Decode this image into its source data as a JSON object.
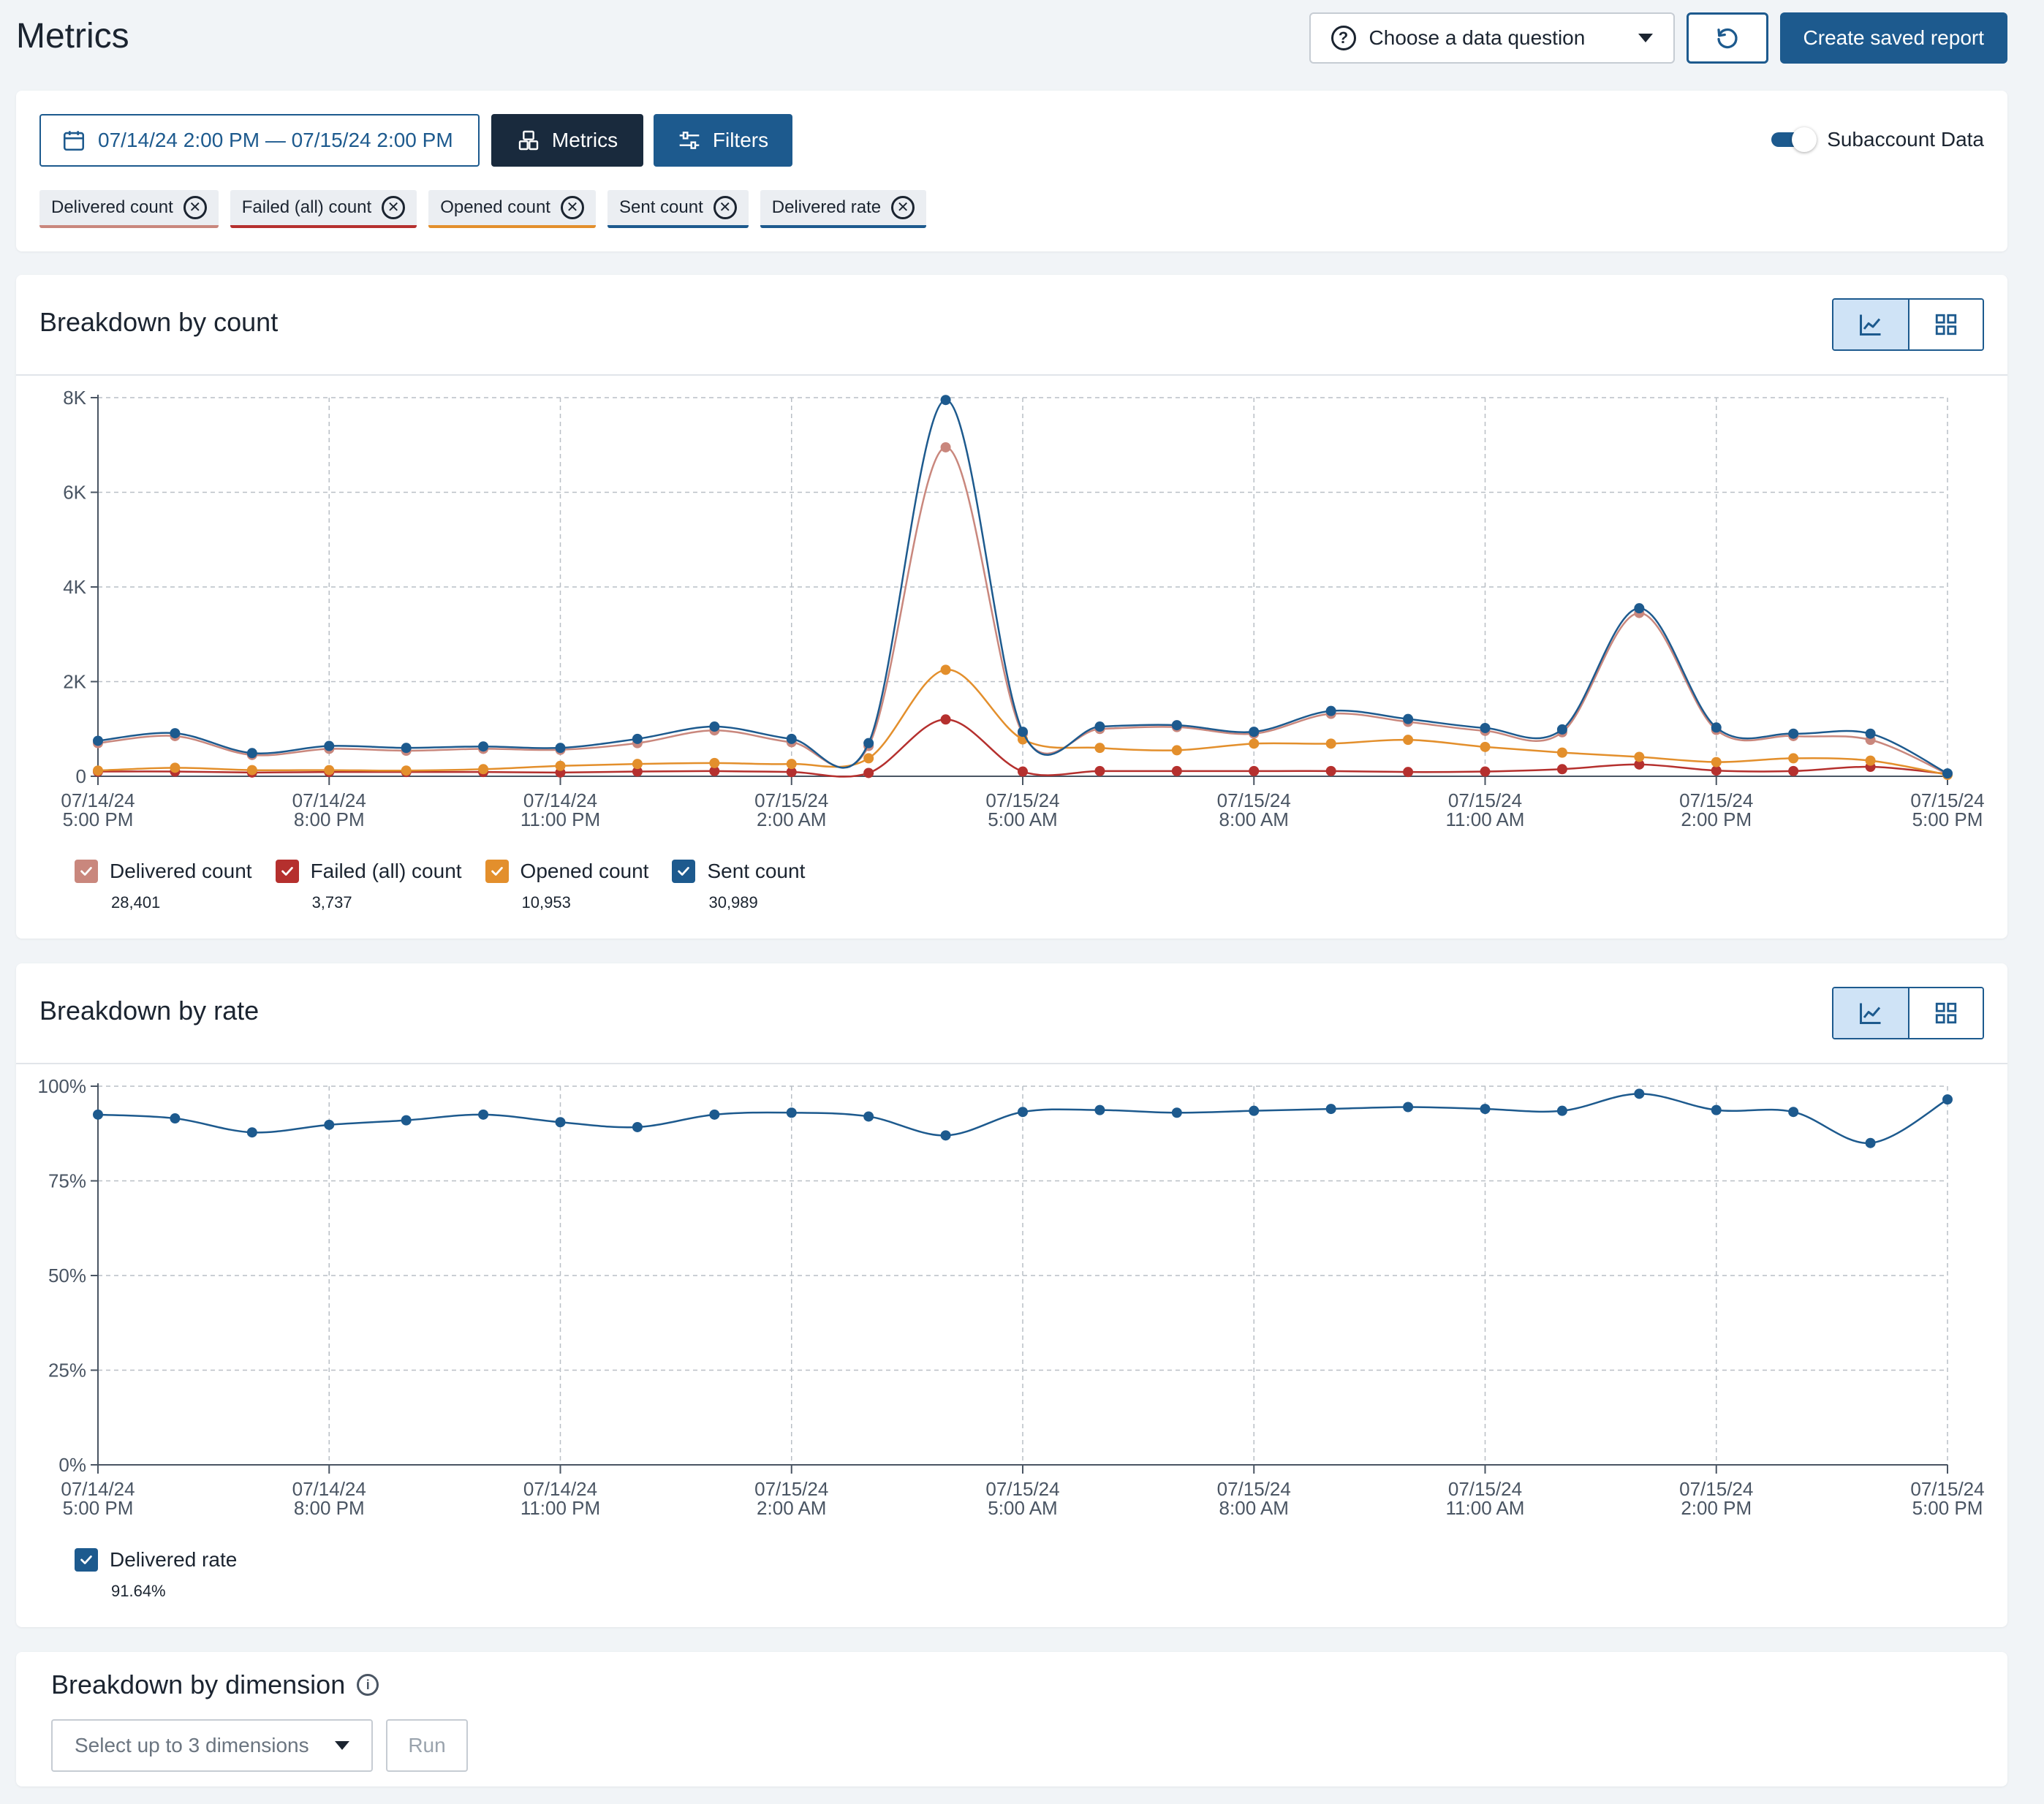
{
  "header": {
    "title": "Metrics",
    "question_select": "Choose a data question",
    "create_report": "Create saved report"
  },
  "filters": {
    "date_range": "07/14/24 2:00 PM — 07/15/24 2:00 PM",
    "metrics_label": "Metrics",
    "filters_label": "Filters",
    "subaccount_label": "Subaccount Data",
    "subaccount_on": true,
    "chips": [
      {
        "label": "Delivered count",
        "color": "#c9877d"
      },
      {
        "label": "Failed (all) count",
        "color": "#b5302e"
      },
      {
        "label": "Opened count",
        "color": "#e38f2c"
      },
      {
        "label": "Sent count",
        "color": "#1d5a8e"
      },
      {
        "label": "Delivered rate",
        "color": "#1d5a8e"
      }
    ]
  },
  "count_card": {
    "title": "Breakdown by count",
    "legend": [
      {
        "name": "Delivered count",
        "total": "28,401",
        "color": "#c9877d"
      },
      {
        "name": "Failed (all) count",
        "total": "3,737",
        "color": "#b5302e"
      },
      {
        "name": "Opened count",
        "total": "10,953",
        "color": "#e38f2c"
      },
      {
        "name": "Sent count",
        "total": "30,989",
        "color": "#1d5a8e"
      }
    ]
  },
  "rate_card": {
    "title": "Breakdown by rate",
    "legend": [
      {
        "name": "Delivered rate",
        "total": "91.64%",
        "color": "#1d5a8e"
      }
    ]
  },
  "dimension_card": {
    "title": "Breakdown by dimension",
    "select_placeholder": "Select up to 3 dimensions",
    "run_label": "Run"
  },
  "chart_data": [
    {
      "type": "line",
      "title": "Breakdown by count",
      "x_ticks": [
        [
          "07/14/24",
          "5:00 PM"
        ],
        [
          "07/14/24",
          "8:00 PM"
        ],
        [
          "07/14/24",
          "11:00 PM"
        ],
        [
          "07/15/24",
          "2:00 AM"
        ],
        [
          "07/15/24",
          "5:00 AM"
        ],
        [
          "07/15/24",
          "8:00 AM"
        ],
        [
          "07/15/24",
          "11:00 AM"
        ],
        [
          "07/15/24",
          "2:00 PM"
        ],
        [
          "07/15/24",
          "5:00 PM"
        ]
      ],
      "y_ticks": [
        "0",
        "2K",
        "4K",
        "6K",
        "8K"
      ],
      "ylim": [
        0,
        8000
      ],
      "x_hours": [
        0,
        1,
        2,
        3,
        4,
        5,
        6,
        7,
        8,
        9,
        10,
        11,
        12,
        13,
        14,
        15,
        16,
        17,
        18,
        19,
        20,
        21,
        22,
        23,
        24
      ],
      "series": [
        {
          "name": "Delivered count",
          "color": "#c9877d",
          "values": [
            700,
            850,
            450,
            580,
            540,
            580,
            560,
            700,
            970,
            720,
            640,
            6950,
            900,
            1000,
            1040,
            900,
            1320,
            1150,
            960,
            930,
            3450,
            980,
            850,
            770,
            50
          ]
        },
        {
          "name": "Failed (all) count",
          "color": "#b5302e",
          "values": [
            100,
            100,
            80,
            90,
            90,
            90,
            80,
            100,
            110,
            90,
            70,
            1200,
            100,
            110,
            110,
            110,
            110,
            90,
            100,
            150,
            250,
            120,
            110,
            200,
            50
          ]
        },
        {
          "name": "Opened count",
          "color": "#e38f2c",
          "values": [
            120,
            180,
            130,
            130,
            120,
            150,
            220,
            260,
            280,
            260,
            380,
            2250,
            780,
            600,
            550,
            690,
            690,
            770,
            620,
            500,
            410,
            300,
            380,
            330,
            30
          ]
        },
        {
          "name": "Sent count",
          "color": "#1d5a8e",
          "values": [
            750,
            910,
            490,
            640,
            600,
            630,
            600,
            790,
            1050,
            790,
            700,
            7950,
            940,
            1050,
            1080,
            940,
            1380,
            1210,
            1020,
            990,
            3550,
            1030,
            900,
            900,
            60
          ]
        }
      ]
    },
    {
      "type": "line",
      "title": "Breakdown by rate",
      "x_ticks": [
        [
          "07/14/24",
          "5:00 PM"
        ],
        [
          "07/14/24",
          "8:00 PM"
        ],
        [
          "07/14/24",
          "11:00 PM"
        ],
        [
          "07/15/24",
          "2:00 AM"
        ],
        [
          "07/15/24",
          "5:00 AM"
        ],
        [
          "07/15/24",
          "8:00 AM"
        ],
        [
          "07/15/24",
          "11:00 AM"
        ],
        [
          "07/15/24",
          "2:00 PM"
        ],
        [
          "07/15/24",
          "5:00 PM"
        ]
      ],
      "y_ticks": [
        "0%",
        "25%",
        "50%",
        "75%",
        "100%"
      ],
      "ylim": [
        0,
        100
      ],
      "x_hours": [
        0,
        1,
        2,
        3,
        4,
        5,
        6,
        7,
        8,
        9,
        10,
        11,
        12,
        13,
        14,
        15,
        16,
        17,
        18,
        19,
        20,
        21,
        22,
        23,
        24
      ],
      "series": [
        {
          "name": "Delivered rate",
          "color": "#1d5a8e",
          "values": [
            92.5,
            91.5,
            87.8,
            89.8,
            91,
            92.5,
            90.5,
            89.2,
            92.5,
            93,
            92,
            87,
            93.2,
            93.7,
            93,
            93.5,
            94,
            94.5,
            94,
            93.5,
            98,
            93.7,
            93.2,
            85,
            96.5
          ]
        }
      ]
    }
  ]
}
